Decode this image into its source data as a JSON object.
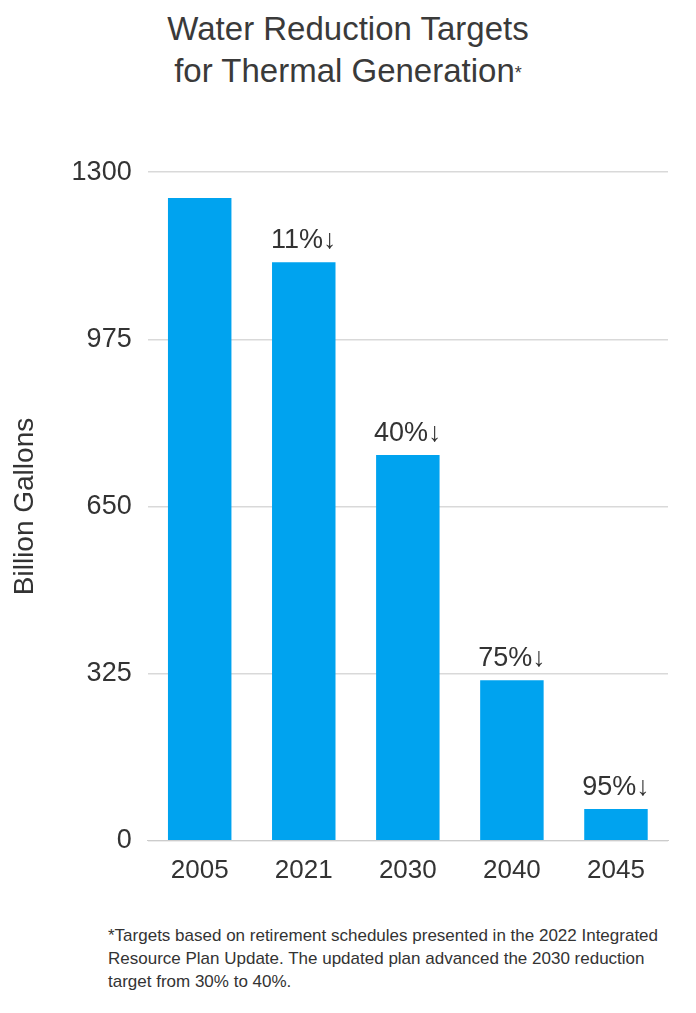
{
  "chart_data": {
    "type": "bar",
    "title": [
      "Water Reduction Targets",
      "for Thermal Generation*"
    ],
    "y_label": "Billion Gallons",
    "categories": [
      "2005",
      "2021",
      "2030",
      "2040",
      "2045"
    ],
    "values": [
      1250,
      1125,
      750,
      312,
      62
    ],
    "color": "#00a3ef",
    "ylim": [
      0,
      1300
    ],
    "yticks": [
      0,
      325,
      650,
      975,
      1300
    ],
    "grid": true,
    "annotations": [
      {
        "category": "2021",
        "text": "11%↓"
      },
      {
        "category": "2030",
        "text": "40%↓"
      },
      {
        "category": "2040",
        "text": "75%↓"
      },
      {
        "category": "2045",
        "text": "95%↓"
      }
    ],
    "footnote": "*Targets based on retirement schedules presented in the 2022 Integrated Resource Plan Update. The updated plan advanced the 2030 reduction target from 30% to 40%."
  }
}
